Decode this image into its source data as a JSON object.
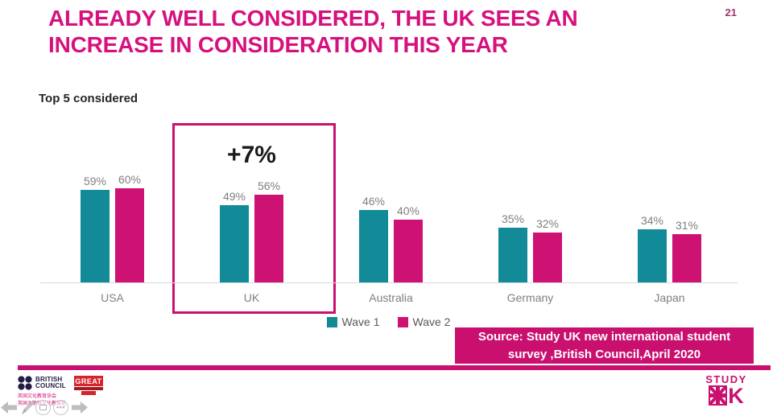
{
  "slide": {
    "page_number": "21",
    "title_line1": "ALREADY WELL CONSIDERED, THE UK SEES AN",
    "title_line2": "INCREASE IN CONSIDERATION THIS YEAR",
    "subtitle": "Top 5 considered"
  },
  "chart_data": {
    "type": "bar",
    "categories": [
      "USA",
      "UK",
      "Australia",
      "Germany",
      "Japan"
    ],
    "series": [
      {
        "name": "Wave 1",
        "color": "#128a97",
        "values": [
          59,
          49,
          46,
          35,
          34
        ]
      },
      {
        "name": "Wave 2",
        "color": "#ce1274",
        "values": [
          60,
          56,
          40,
          32,
          31
        ]
      }
    ],
    "value_suffix": "%",
    "ylim": [
      0,
      65
    ],
    "grid": false,
    "legend_position": "bottom",
    "highlight": {
      "category": "UK",
      "annotation": "+7%"
    }
  },
  "source_box": {
    "line1": "Source: Study UK new international student",
    "line2": "survey ,British Council,April 2020"
  },
  "footer": {
    "british_council": {
      "line1": "BRITISH",
      "line2": "COUNCIL"
    },
    "great_label": "GREAT",
    "chinese_line1": "英国文化教育协会",
    "chinese_line2": "英国大使馆文化教育处",
    "study_uk_word": "STUDY",
    "study_uk_k": "K"
  },
  "nav_icons": [
    "back-arrow",
    "pen",
    "display",
    "more-options",
    "forward-arrow"
  ],
  "colors": {
    "title_pink": "#d6117e",
    "brand_pink": "#c9106f",
    "teal": "#128a97",
    "pink": "#ce1274",
    "navy": "#221c46",
    "red": "#d8232a"
  }
}
